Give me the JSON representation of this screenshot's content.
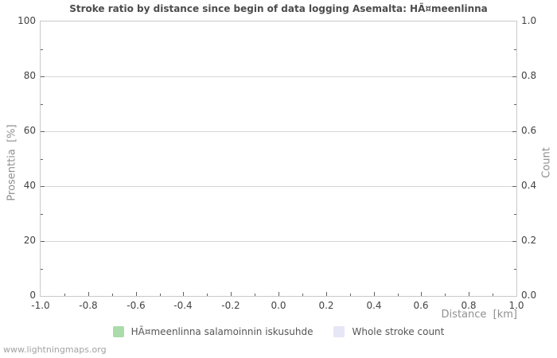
{
  "watermark": "www.lightningmaps.org",
  "colors": {
    "series_stroke_ratio": "#abdbab",
    "series_whole_stroke_count": "#e6e6f6",
    "gridline": "#d6d6d6",
    "plot_border": "#c9c9c9",
    "title_text": "#4c4c4c",
    "axis_unit_text": "#8f8f8f",
    "tick_label_text": "#434343"
  },
  "chart_data": {
    "type": "bar",
    "title": "Stroke ratio by distance since begin of data logging Asemalta: HÃ¤meenlinna",
    "x_axis": {
      "label": "Distance  [km]",
      "min": -1.0,
      "max": 1.0,
      "minor_step": 0.1,
      "major_step": 0.2,
      "major_tick_labels": [
        "-1.0",
        "-0.8",
        "-0.6",
        "-0.4",
        "-0.2",
        "0.0",
        "0.2",
        "0.4",
        "0.6",
        "0.8",
        "1.0"
      ]
    },
    "y_axis_left": {
      "label": "Prosenttia  [%]",
      "min": 0,
      "max": 100,
      "minor_step": 10,
      "major_step": 20,
      "major_tick_labels": [
        "0",
        "20",
        "40",
        "60",
        "80",
        "100"
      ]
    },
    "y_axis_right": {
      "label": "Count",
      "min": 0.0,
      "max": 1.0,
      "minor_step": 0.1,
      "major_step": 0.2,
      "major_tick_labels": [
        "0.0",
        "0.2",
        "0.4",
        "0.6",
        "0.8",
        "1.0"
      ]
    },
    "grid": {
      "horizontal": true,
      "vertical": false
    },
    "legend_position": "bottom-center",
    "series": [
      {
        "name": "HÃ¤meenlinna salamoinnin iskusuhde",
        "color": "#abdbab",
        "axis": "left",
        "values": []
      },
      {
        "name": "Whole stroke count",
        "color": "#e6e6f6",
        "axis": "right",
        "values": []
      }
    ]
  }
}
